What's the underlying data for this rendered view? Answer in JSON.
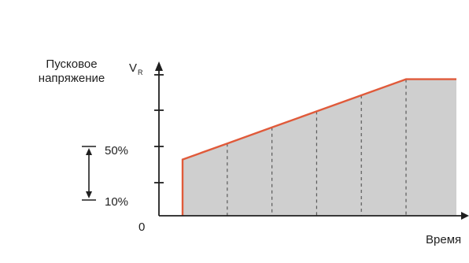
{
  "chart_data": {
    "type": "line",
    "ylabel_lines": [
      "Пусковое",
      "напряжение"
    ],
    "y_axis_symbol": "V",
    "y_axis_symbol_sub": "R",
    "xlabel": "Время",
    "origin_label": "0",
    "range_top_label": "50%",
    "range_bottom_label": "10%",
    "x": [
      0,
      1,
      2,
      3,
      4,
      5,
      6
    ],
    "values": [
      0.35,
      0.45,
      0.55,
      0.65,
      0.75,
      0.85,
      0.85
    ],
    "ylim": [
      0,
      1
    ],
    "grid": "dashed vertical lines under the curve at each step",
    "line_color": "#e05a3a",
    "fill_color": "#cfcfcf"
  }
}
